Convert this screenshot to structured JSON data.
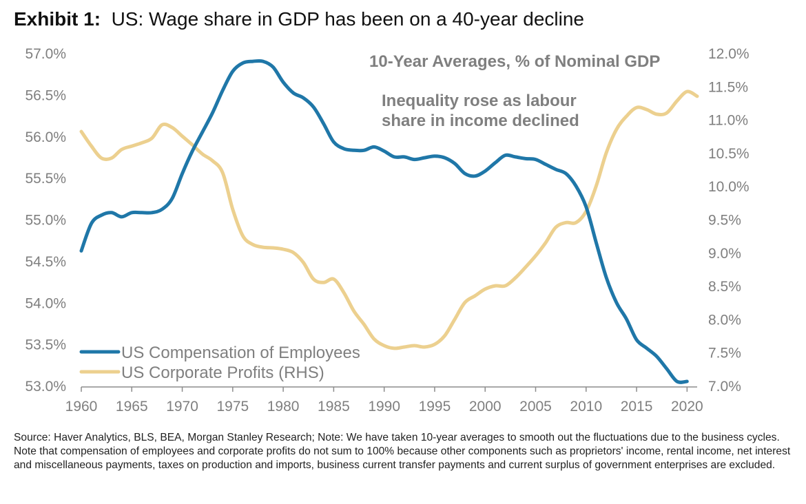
{
  "header": {
    "exhibit_label": "Exhibit 1:",
    "title": "US: Wage share in GDP has been on a 40-year decline"
  },
  "annotations": {
    "subtitle": "10-Year Averages, % of Nominal GDP",
    "note_line1": "Inequality rose as labour",
    "note_line2": "share in income declined"
  },
  "source_note": "Source: Haver Analytics, BLS, BEA, Morgan Stanley Research; Note: We have taken 10-year averages to smooth out the fluctuations due to the business cycles. Note that compensation of employees and corporate profits do not sum to 100% because other components such as proprietors' income, rental income, net interest and miscellaneous payments, taxes on production and imports, business current transfer payments and current surplus of government enterprises are excluded.",
  "colors": {
    "compensation": "#1f77a8",
    "profits": "#ecd08f",
    "text": "#7f7f7f"
  },
  "chart_data": {
    "type": "line",
    "xlim": [
      1960,
      2021
    ],
    "x_ticks": [
      "1960",
      "1965",
      "1970",
      "1975",
      "1980",
      "1985",
      "1990",
      "1995",
      "2000",
      "2005",
      "2010",
      "2015",
      "2020"
    ],
    "ylim_left": [
      53.0,
      57.0
    ],
    "y_ticks_left": [
      "53.0%",
      "53.5%",
      "54.0%",
      "54.5%",
      "55.0%",
      "55.5%",
      "56.0%",
      "56.5%",
      "57.0%"
    ],
    "ylim_right": [
      7.0,
      12.0
    ],
    "y_ticks_right": [
      "7.0%",
      "7.5%",
      "8.0%",
      "8.5%",
      "9.0%",
      "9.5%",
      "10.0%",
      "10.5%",
      "11.0%",
      "11.5%",
      "12.0%"
    ],
    "legend_position": "bottom-left",
    "series": [
      {
        "name": "US Compensation of Employees",
        "axis": "left",
        "x": [
          1960,
          1961,
          1962,
          1963,
          1964,
          1965,
          1966,
          1967,
          1968,
          1969,
          1970,
          1971,
          1972,
          1973,
          1974,
          1975,
          1976,
          1977,
          1978,
          1979,
          1980,
          1981,
          1982,
          1983,
          1984,
          1985,
          1986,
          1987,
          1988,
          1989,
          1990,
          1991,
          1992,
          1993,
          1994,
          1995,
          1996,
          1997,
          1998,
          1999,
          2000,
          2001,
          2002,
          2003,
          2004,
          2005,
          2006,
          2007,
          2008,
          2009,
          2010,
          2011,
          2012,
          2013,
          2014,
          2015,
          2016,
          2017,
          2018,
          2019,
          2020
        ],
        "values": [
          54.62,
          54.95,
          55.05,
          55.08,
          55.03,
          55.08,
          55.08,
          55.08,
          55.12,
          55.25,
          55.55,
          55.82,
          56.05,
          56.28,
          56.55,
          56.78,
          56.88,
          56.9,
          56.9,
          56.83,
          56.65,
          56.52,
          56.46,
          56.35,
          56.15,
          55.93,
          55.85,
          55.83,
          55.83,
          55.87,
          55.82,
          55.75,
          55.75,
          55.72,
          55.74,
          55.76,
          55.74,
          55.67,
          55.55,
          55.52,
          55.58,
          55.68,
          55.77,
          55.75,
          55.73,
          55.72,
          55.66,
          55.6,
          55.55,
          55.4,
          55.15,
          54.72,
          54.3,
          54.0,
          53.8,
          53.55,
          53.45,
          53.35,
          53.2,
          53.05,
          53.05
        ]
      },
      {
        "name": "US Corporate Profits (RHS)",
        "axis": "right",
        "x": [
          1960,
          1961,
          1962,
          1963,
          1964,
          1965,
          1966,
          1967,
          1968,
          1969,
          1970,
          1971,
          1972,
          1973,
          1974,
          1975,
          1976,
          1977,
          1978,
          1979,
          1980,
          1981,
          1982,
          1983,
          1984,
          1985,
          1986,
          1987,
          1988,
          1989,
          1990,
          1991,
          1992,
          1993,
          1994,
          1995,
          1996,
          1997,
          1998,
          1999,
          2000,
          2001,
          2002,
          2003,
          2004,
          2005,
          2006,
          2007,
          2008,
          2009,
          2010,
          2011,
          2012,
          2013,
          2014,
          2015,
          2016,
          2017,
          2018,
          2019,
          2020,
          2021
        ],
        "values": [
          10.82,
          10.6,
          10.42,
          10.42,
          10.55,
          10.6,
          10.65,
          10.72,
          10.92,
          10.88,
          10.75,
          10.62,
          10.48,
          10.38,
          10.2,
          9.65,
          9.25,
          9.12,
          9.08,
          9.07,
          9.05,
          9.0,
          8.85,
          8.6,
          8.55,
          8.6,
          8.4,
          8.12,
          7.92,
          7.7,
          7.6,
          7.56,
          7.58,
          7.6,
          7.58,
          7.62,
          7.75,
          8.0,
          8.25,
          8.35,
          8.45,
          8.5,
          8.5,
          8.62,
          8.78,
          8.95,
          9.15,
          9.38,
          9.45,
          9.45,
          9.62,
          10.0,
          10.5,
          10.85,
          11.05,
          11.18,
          11.15,
          11.08,
          11.1,
          11.28,
          11.42,
          11.35
        ]
      }
    ]
  }
}
